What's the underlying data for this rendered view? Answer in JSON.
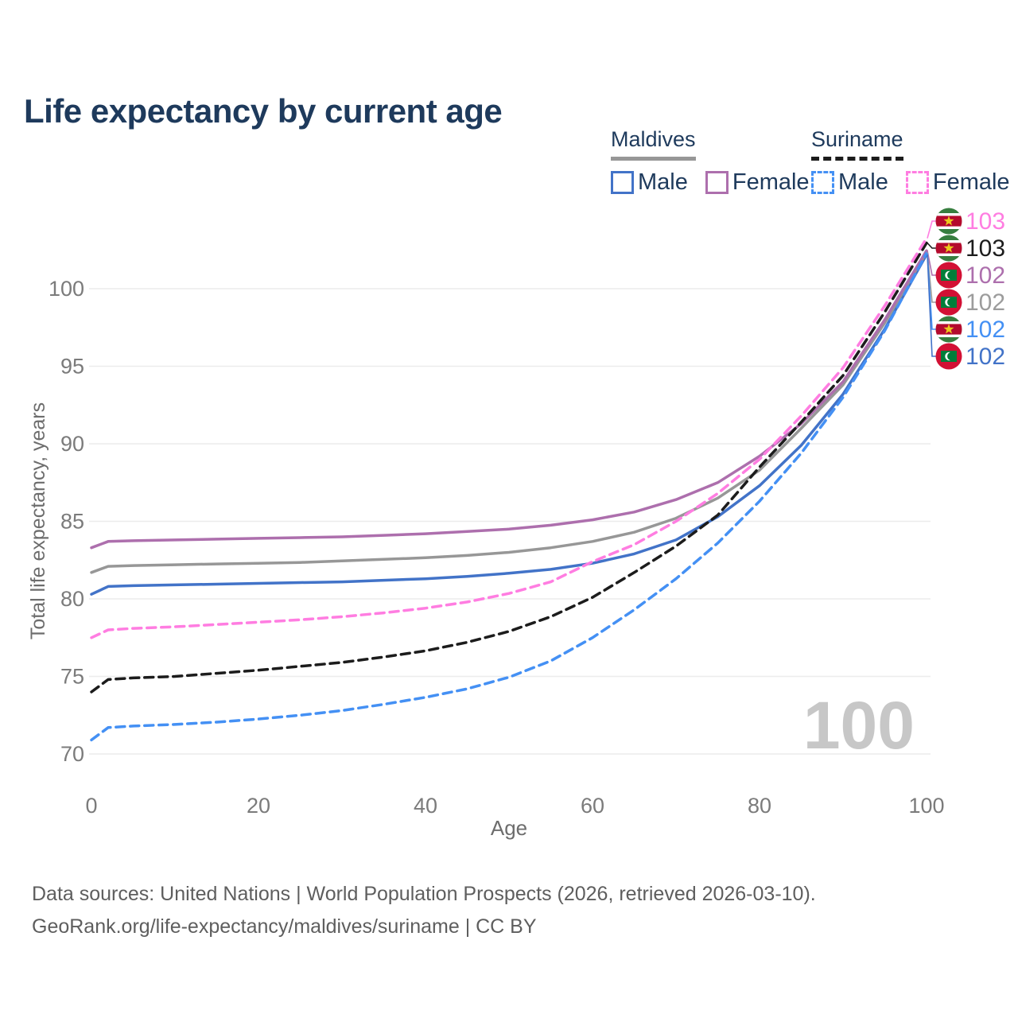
{
  "page": {
    "title": "Life expectancy by current age",
    "watermark": "100",
    "footer_line1": "Data sources: United Nations | World Population Prospects (2026, retrieved 2026-03-10).",
    "footer_line2": "GeoRank.org/life-expectancy/maldives/suriname | CC BY"
  },
  "legend": {
    "maldives": {
      "label": "Maldives",
      "male": "Male",
      "female": "Female"
    },
    "suriname": {
      "label": "Suriname",
      "male": "Male",
      "female": "Female"
    }
  },
  "colors": {
    "maldives_male": "#4273c8",
    "maldives_female": "#ad6fad",
    "maldives_total": "#979797",
    "suriname_male": "#4490f4",
    "suriname_female": "#ff7de1",
    "suriname_total": "#1c1c1c",
    "grid": "#ececec",
    "tick_text": "#7b7b7b",
    "watermark": "#c7c7c7",
    "navy_text": "#1e3a5c",
    "flag_maldives_red": "#d21034",
    "flag_maldives_green": "#007e3a",
    "flag_suriname_green": "#377e3f",
    "flag_suriname_red": "#b40a2d",
    "flag_suriname_star": "#ecc81d"
  },
  "chart_data": {
    "type": "line",
    "title": "Life expectancy by current age",
    "xlabel": "Age",
    "ylabel": "Total life expectancy, years",
    "xlim": [
      0,
      100
    ],
    "ylim": [
      69,
      104.5
    ],
    "x_ticks": [
      0,
      20,
      40,
      60,
      80,
      100
    ],
    "y_ticks": [
      70,
      75,
      80,
      85,
      90,
      95,
      100
    ],
    "grid": "horizontal",
    "legend_position": "top-right",
    "x": [
      0,
      2,
      5,
      10,
      15,
      20,
      25,
      30,
      35,
      40,
      45,
      50,
      55,
      60,
      65,
      70,
      75,
      80,
      85,
      90,
      95,
      100
    ],
    "series": [
      {
        "name": "Maldives Male",
        "country": "maldives",
        "sex": "male",
        "style": "solid",
        "color": "#4273c8",
        "values": [
          80.3,
          80.8,
          80.85,
          80.9,
          80.95,
          81.0,
          81.05,
          81.1,
          81.2,
          81.3,
          81.45,
          81.65,
          81.9,
          82.3,
          82.9,
          83.8,
          85.3,
          87.3,
          89.9,
          93.2,
          97.4,
          102.2
        ]
      },
      {
        "name": "Maldives (both sexes)",
        "country": "maldives",
        "sex": "total",
        "style": "solid",
        "color": "#979797",
        "values": [
          81.7,
          82.1,
          82.15,
          82.2,
          82.25,
          82.3,
          82.35,
          82.45,
          82.55,
          82.65,
          82.8,
          83.0,
          83.3,
          83.7,
          84.3,
          85.2,
          86.5,
          88.3,
          91.0,
          93.8,
          97.8,
          102.35
        ]
      },
      {
        "name": "Maldives Female",
        "country": "maldives",
        "sex": "female",
        "style": "solid",
        "color": "#ad6fad",
        "values": [
          83.3,
          83.7,
          83.75,
          83.8,
          83.85,
          83.9,
          83.95,
          84.0,
          84.1,
          84.2,
          84.35,
          84.5,
          84.75,
          85.1,
          85.6,
          86.4,
          87.5,
          89.2,
          91.3,
          94.0,
          98.0,
          102.45
        ]
      },
      {
        "name": "Suriname Male",
        "country": "suriname",
        "sex": "male",
        "style": "dashed",
        "color": "#4490f4",
        "values": [
          70.9,
          71.7,
          71.8,
          71.9,
          72.05,
          72.25,
          72.5,
          72.8,
          73.2,
          73.65,
          74.2,
          74.95,
          76.0,
          77.5,
          79.3,
          81.3,
          83.6,
          86.3,
          89.4,
          93.0,
          97.3,
          102.3
        ]
      },
      {
        "name": "Suriname (both sexes)",
        "country": "suriname",
        "sex": "total",
        "style": "dashed",
        "color": "#1c1c1c",
        "values": [
          74.0,
          74.8,
          74.9,
          75.0,
          75.2,
          75.4,
          75.65,
          75.9,
          76.25,
          76.65,
          77.2,
          77.9,
          78.85,
          80.1,
          81.7,
          83.4,
          85.4,
          88.5,
          91.4,
          94.4,
          98.5,
          102.95
        ]
      },
      {
        "name": "Suriname Female",
        "country": "suriname",
        "sex": "female",
        "style": "dashed",
        "color": "#ff7de1",
        "values": [
          77.5,
          78.0,
          78.1,
          78.2,
          78.35,
          78.5,
          78.65,
          78.85,
          79.1,
          79.4,
          79.8,
          80.35,
          81.1,
          82.4,
          83.5,
          85.0,
          86.8,
          89.0,
          91.8,
          94.9,
          98.9,
          103.25
        ]
      }
    ],
    "end_labels": [
      {
        "series": "Suriname Female",
        "flag": "suriname",
        "text": "103",
        "color": "#ff7de1"
      },
      {
        "series": "Suriname (both sexes)",
        "flag": "suriname",
        "text": "103",
        "color": "#1c1c1c"
      },
      {
        "series": "Maldives Female",
        "flag": "maldives",
        "text": "102",
        "color": "#ad6fad"
      },
      {
        "series": "Maldives (both sexes)",
        "flag": "maldives",
        "text": "102",
        "color": "#9c9c9c"
      },
      {
        "series": "Suriname Male",
        "flag": "suriname",
        "text": "102",
        "color": "#4490f4"
      },
      {
        "series": "Maldives Male",
        "flag": "maldives",
        "text": "102",
        "color": "#4273c8"
      }
    ]
  }
}
